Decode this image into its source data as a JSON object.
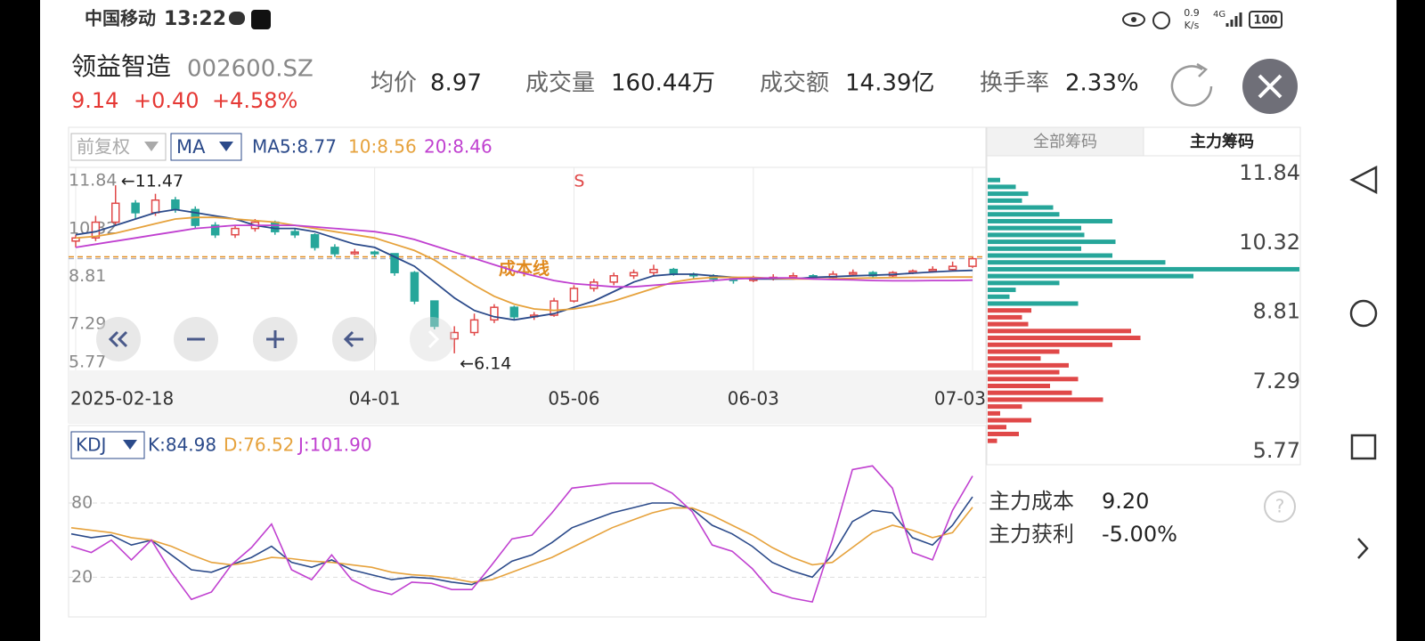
{
  "status_bar": {
    "carrier": "中国移动",
    "time": "13:22",
    "speed": "0.9",
    "speed_unit": "K/s",
    "network": "4G",
    "battery": "100"
  },
  "header": {
    "name": "领益智造",
    "code": "002600.SZ",
    "price": "9.14",
    "change": "+0.40",
    "change_pct": "+4.58%",
    "stats": [
      {
        "label": "均价",
        "value": "8.97"
      },
      {
        "label": "成交量",
        "value": "160.44万"
      },
      {
        "label": "成交额",
        "value": "14.39亿"
      },
      {
        "label": "换手率",
        "value": "2.33%"
      }
    ]
  },
  "toolbar": {
    "adjust": "前复权",
    "indicator": "MA"
  },
  "chip_tabs": [
    "全部筹码",
    "主力筹码"
  ],
  "chip_summary": [
    {
      "label": "主力成本",
      "value": "9.20"
    },
    {
      "label": "主力获利",
      "value": "-5.00%"
    }
  ],
  "help": "?",
  "chart_data": [
    {
      "type": "candlestick",
      "up_color": "#e04848",
      "down_color": "#26a69a",
      "ylim": [
        5.77,
        11.84
      ],
      "yticks": [
        11.84,
        10.32,
        8.81,
        7.29,
        5.77
      ],
      "xticks": [
        {
          "value": 0,
          "label": "2025-02-18"
        },
        {
          "value": 15,
          "label": "04-01"
        },
        {
          "value": 25,
          "label": "05-06"
        },
        {
          "value": 34,
          "label": "06-03"
        },
        {
          "value": 45,
          "label": "07-03"
        }
      ],
      "candles": [
        [
          9.7,
          9.9,
          9.5,
          9.8
        ],
        [
          9.8,
          10.5,
          9.7,
          10.3
        ],
        [
          10.3,
          11.47,
          10.2,
          10.9
        ],
        [
          10.9,
          11.0,
          10.4,
          10.6
        ],
        [
          10.6,
          11.2,
          10.5,
          11.0
        ],
        [
          11.0,
          11.1,
          10.6,
          10.7
        ],
        [
          10.7,
          10.8,
          10.1,
          10.2
        ],
        [
          10.2,
          10.3,
          9.8,
          9.9
        ],
        [
          9.9,
          10.2,
          9.8,
          10.1
        ],
        [
          10.1,
          10.4,
          10.0,
          10.3
        ],
        [
          10.3,
          10.35,
          9.9,
          10.0
        ],
        [
          10.0,
          10.1,
          9.8,
          9.9
        ],
        [
          9.9,
          9.95,
          9.4,
          9.5
        ],
        [
          9.5,
          9.6,
          9.2,
          9.3
        ],
        [
          9.3,
          9.45,
          9.25,
          9.35
        ],
        [
          9.35,
          9.4,
          9.2,
          9.3
        ],
        [
          9.3,
          9.3,
          8.6,
          8.7
        ],
        [
          8.7,
          8.75,
          7.7,
          7.8
        ],
        [
          7.8,
          7.8,
          6.9,
          7.0
        ],
        [
          6.6,
          7.0,
          6.14,
          6.8
        ],
        [
          6.8,
          7.4,
          6.7,
          7.2
        ],
        [
          7.2,
          7.7,
          7.1,
          7.6
        ],
        [
          7.6,
          7.65,
          7.2,
          7.3
        ],
        [
          7.3,
          7.45,
          7.2,
          7.35
        ],
        [
          7.35,
          7.9,
          7.3,
          7.8
        ],
        [
          7.8,
          8.3,
          7.75,
          8.2
        ],
        [
          8.2,
          8.5,
          8.1,
          8.4
        ],
        [
          8.4,
          8.7,
          8.3,
          8.6
        ],
        [
          8.6,
          8.8,
          8.5,
          8.7
        ],
        [
          8.7,
          8.95,
          8.6,
          8.8
        ],
        [
          8.8,
          8.85,
          8.6,
          8.65
        ],
        [
          8.65,
          8.7,
          8.5,
          8.6
        ],
        [
          8.6,
          8.65,
          8.4,
          8.5
        ],
        [
          8.5,
          8.55,
          8.35,
          8.45
        ],
        [
          8.45,
          8.6,
          8.4,
          8.5
        ],
        [
          8.5,
          8.65,
          8.45,
          8.55
        ],
        [
          8.55,
          8.7,
          8.5,
          8.6
        ],
        [
          8.6,
          8.65,
          8.5,
          8.55
        ],
        [
          8.55,
          8.75,
          8.5,
          8.65
        ],
        [
          8.65,
          8.8,
          8.6,
          8.7
        ],
        [
          8.7,
          8.75,
          8.55,
          8.6
        ],
        [
          8.6,
          8.75,
          8.55,
          8.7
        ],
        [
          8.7,
          8.8,
          8.65,
          8.75
        ],
        [
          8.75,
          8.9,
          8.7,
          8.8
        ],
        [
          8.8,
          9.05,
          8.75,
          8.9
        ],
        [
          8.9,
          9.2,
          8.85,
          9.14
        ]
      ],
      "series": [
        {
          "name": "MA5:8.77",
          "color": "#2b4a8a",
          "values": [
            9.9,
            10.0,
            10.2,
            10.4,
            10.6,
            10.7,
            10.6,
            10.5,
            10.4,
            10.2,
            10.1,
            10.1,
            10.0,
            9.8,
            9.6,
            9.5,
            9.2,
            8.9,
            8.4,
            7.9,
            7.5,
            7.3,
            7.2,
            7.3,
            7.4,
            7.6,
            7.8,
            8.1,
            8.4,
            8.6,
            8.65,
            8.65,
            8.6,
            8.55,
            8.5,
            8.5,
            8.5,
            8.55,
            8.57,
            8.6,
            8.62,
            8.64,
            8.68,
            8.72,
            8.75,
            8.77
          ]
        },
        {
          "name": "10:8.56",
          "color": "#e6a23c",
          "values": [
            9.8,
            9.85,
            9.95,
            10.1,
            10.25,
            10.4,
            10.45,
            10.45,
            10.4,
            10.35,
            10.3,
            10.2,
            10.1,
            10.0,
            9.9,
            9.8,
            9.6,
            9.4,
            9.1,
            8.7,
            8.3,
            7.95,
            7.7,
            7.55,
            7.5,
            7.55,
            7.65,
            7.8,
            8.0,
            8.2,
            8.4,
            8.5,
            8.55,
            8.55,
            8.55,
            8.52,
            8.5,
            8.5,
            8.5,
            8.52,
            8.53,
            8.54,
            8.55,
            8.55,
            8.56,
            8.56
          ]
        },
        {
          "name": "20:8.46",
          "color": "#c040d0",
          "values": [
            9.5,
            9.6,
            9.7,
            9.8,
            9.9,
            10.0,
            10.1,
            10.15,
            10.2,
            10.2,
            10.2,
            10.2,
            10.15,
            10.1,
            10.05,
            10.0,
            9.9,
            9.75,
            9.55,
            9.35,
            9.15,
            8.95,
            8.75,
            8.6,
            8.45,
            8.35,
            8.3,
            8.25,
            8.25,
            8.3,
            8.35,
            8.4,
            8.45,
            8.5,
            8.52,
            8.53,
            8.53,
            8.5,
            8.48,
            8.47,
            8.45,
            8.44,
            8.44,
            8.45,
            8.45,
            8.46
          ]
        }
      ],
      "cost_line": {
        "label": "成本线",
        "value": 9.2,
        "color": "#e08a1e"
      },
      "price_line": 9.14,
      "annotations": [
        {
          "text": "←11.47",
          "candle": 2
        },
        {
          "text": "←6.14",
          "candle": 19
        },
        {
          "text": "S",
          "candle": 25
        }
      ]
    },
    {
      "type": "line",
      "indicator": "KDJ",
      "ylim": [
        -10,
        116
      ],
      "yticks": [
        20,
        80
      ],
      "grid": true,
      "series": [
        {
          "name": "K:84.98",
          "color": "#2b4a8a",
          "values": [
            55,
            52,
            54,
            46,
            50,
            38,
            26,
            24,
            30,
            36,
            45,
            32,
            28,
            34,
            26,
            22,
            18,
            20,
            19,
            16,
            14,
            22,
            33,
            38,
            48,
            60,
            66,
            72,
            76,
            80,
            80,
            75,
            62,
            55,
            45,
            32,
            25,
            20,
            38,
            65,
            74,
            72,
            52,
            46,
            62,
            84.98
          ]
        },
        {
          "name": "D:76.52",
          "color": "#e6a23c",
          "values": [
            60,
            58,
            56,
            52,
            50,
            45,
            38,
            32,
            30,
            32,
            36,
            35,
            33,
            32,
            30,
            28,
            24,
            22,
            21,
            19,
            16,
            18,
            24,
            30,
            36,
            44,
            52,
            60,
            66,
            72,
            76,
            76,
            70,
            62,
            54,
            44,
            36,
            30,
            32,
            44,
            56,
            62,
            58,
            52,
            56,
            76.52
          ]
        },
        {
          "name": "J:101.90",
          "color": "#c040d0",
          "values": [
            45,
            40,
            50,
            34,
            50,
            24,
            2,
            8,
            30,
            44,
            63,
            26,
            18,
            38,
            18,
            10,
            6,
            16,
            15,
            10,
            10,
            30,
            51,
            54,
            72,
            92,
            94,
            96,
            96,
            96,
            88,
            73,
            46,
            41,
            27,
            8,
            3,
            0,
            50,
            107,
            110,
            92,
            40,
            34,
            74,
            101.9
          ]
        }
      ]
    },
    {
      "type": "bar",
      "orientation": "horizontal",
      "xlim": [
        0,
        100
      ],
      "ylim": [
        5.77,
        11.84
      ],
      "yticks": [
        11.84,
        10.32,
        8.81,
        7.29,
        5.77
      ],
      "prices": [
        11.7,
        11.55,
        11.4,
        11.25,
        11.1,
        10.95,
        10.8,
        10.65,
        10.5,
        10.35,
        10.2,
        10.05,
        9.9,
        9.75,
        9.6,
        9.45,
        9.3,
        9.15,
        9.0,
        8.85,
        8.7,
        8.55,
        8.4,
        8.25,
        8.1,
        7.95,
        7.8,
        7.65,
        7.5,
        7.35,
        7.2,
        7.05,
        6.9,
        6.75,
        6.6,
        6.45,
        6.3,
        6.15,
        6.0
      ],
      "values": [
        4,
        9,
        13,
        11,
        21,
        23,
        40,
        30,
        31,
        41,
        30,
        40,
        57,
        100,
        66,
        23,
        9,
        7,
        29,
        14,
        11,
        13,
        46,
        49,
        40,
        23,
        17,
        26,
        23,
        29,
        20,
        27,
        37,
        11,
        4,
        14,
        6,
        10,
        3
      ],
      "colors": [
        "#26a69a",
        "#26a69a",
        "#26a69a",
        "#26a69a",
        "#26a69a",
        "#26a69a",
        "#26a69a",
        "#26a69a",
        "#26a69a",
        "#26a69a",
        "#26a69a",
        "#26a69a",
        "#26a69a",
        "#26a69a",
        "#26a69a",
        "#26a69a",
        "#26a69a",
        "#26a69a",
        "#26a69a",
        "#e04848",
        "#e04848",
        "#e04848",
        "#e04848",
        "#e04848",
        "#e04848",
        "#e04848",
        "#e04848",
        "#e04848",
        "#e04848",
        "#e04848",
        "#e04848",
        "#e04848",
        "#e04848",
        "#e04848",
        "#e04848",
        "#e04848",
        "#e04848",
        "#e04848",
        "#e04848"
      ]
    }
  ]
}
